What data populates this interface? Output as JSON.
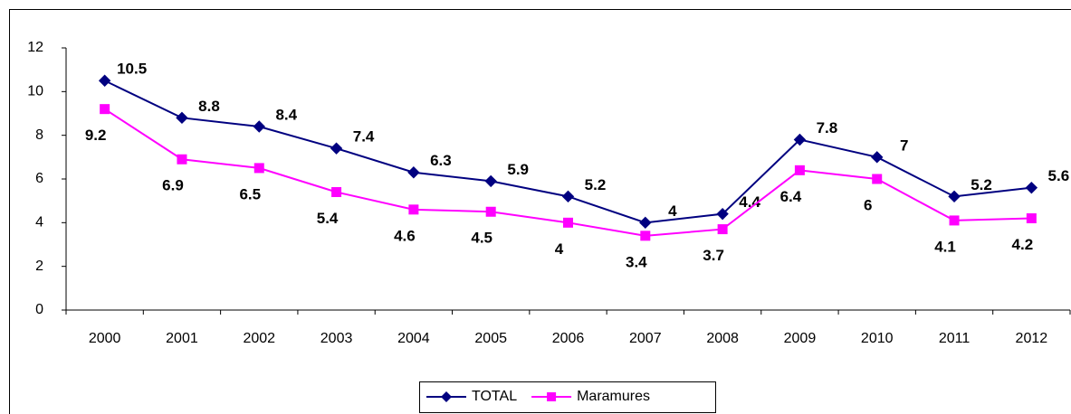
{
  "chart_data": {
    "type": "line",
    "categories": [
      "2000",
      "2001",
      "2002",
      "2003",
      "2004",
      "2005",
      "2006",
      "2007",
      "2008",
      "2009",
      "2010",
      "2011",
      "2012"
    ],
    "series": [
      {
        "name": "TOTAL",
        "color": "#000080",
        "marker": "diamond",
        "values": [
          10.5,
          8.8,
          8.4,
          7.4,
          6.3,
          5.9,
          5.2,
          4,
          4.4,
          7.8,
          7,
          5.2,
          5.6
        ]
      },
      {
        "name": "Maramures",
        "color": "#ff00ff",
        "marker": "square",
        "values": [
          9.2,
          6.9,
          6.5,
          5.4,
          4.6,
          4.5,
          4,
          3.4,
          3.7,
          6.4,
          6,
          4.1,
          4.2
        ]
      }
    ],
    "ylim": [
      0,
      12
    ],
    "yticks": [
      0,
      2,
      4,
      6,
      8,
      10,
      12
    ],
    "grid": false,
    "legend": "bottom"
  }
}
